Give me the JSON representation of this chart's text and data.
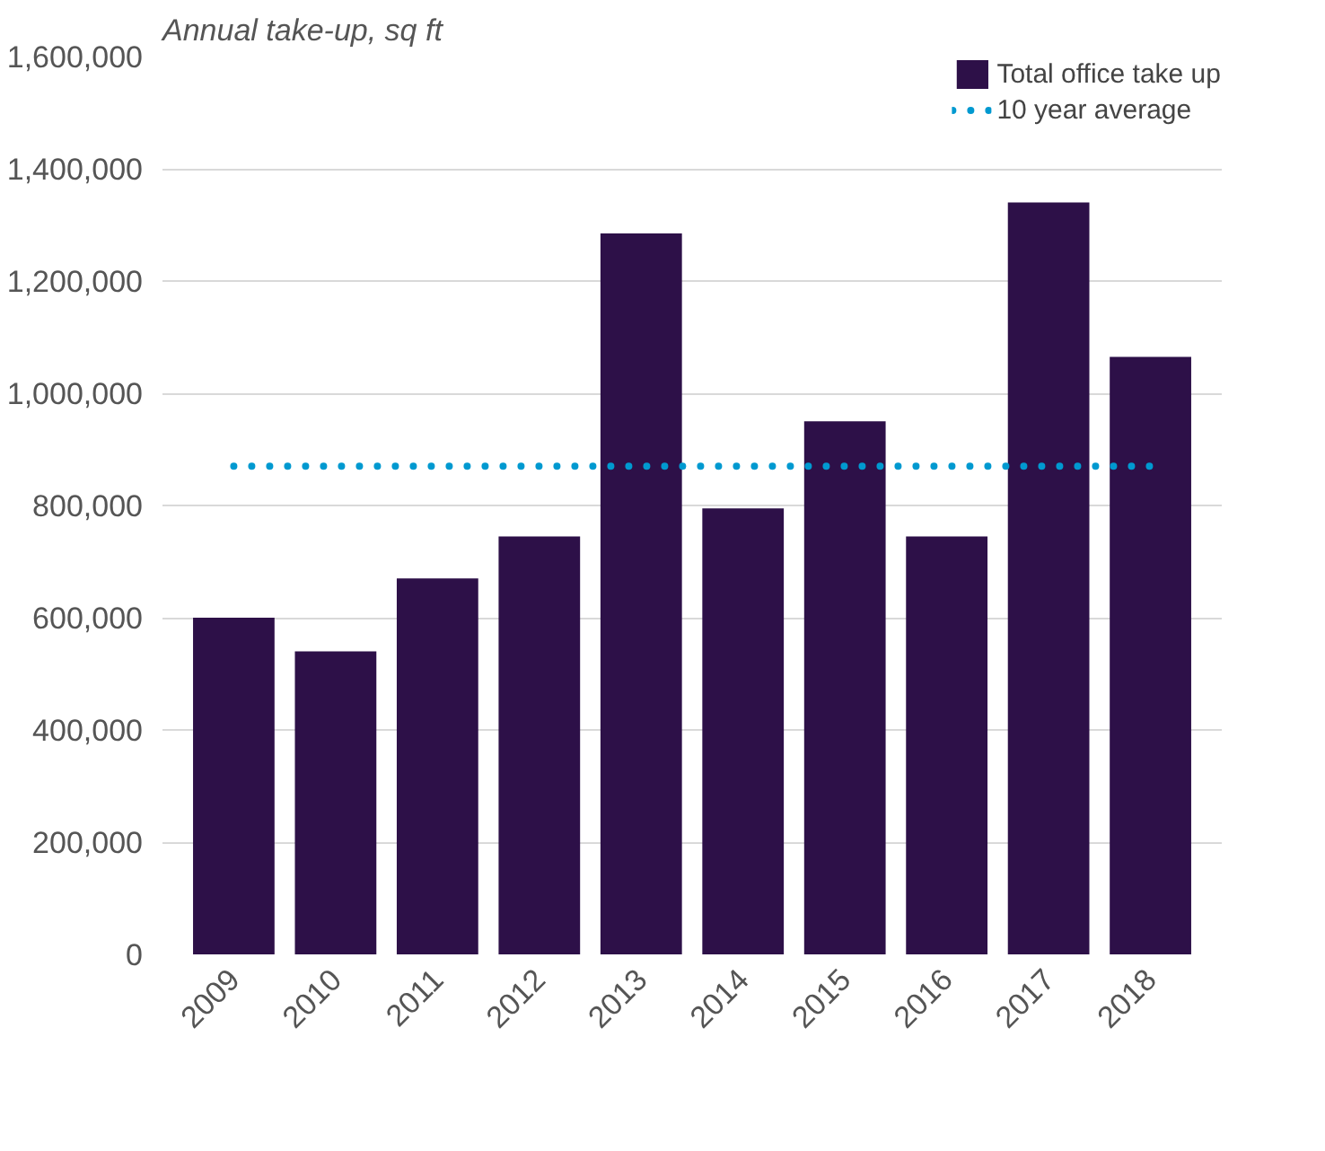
{
  "chart_data": {
    "type": "bar",
    "ylabel": "Annual take-up, sq ft",
    "categories": [
      "2009",
      "2010",
      "2011",
      "2012",
      "2013",
      "2014",
      "2015",
      "2016",
      "2017",
      "2018"
    ],
    "series": [
      {
        "name": "Total office take up",
        "color": "#2d1048",
        "values": [
          600000,
          540000,
          670000,
          745000,
          1285000,
          795000,
          950000,
          745000,
          1340000,
          1065000
        ]
      },
      {
        "name": "10 year average",
        "type": "line",
        "line_style": "dotted",
        "color": "#0099d0",
        "values": [
          870000,
          870000,
          870000,
          870000,
          870000,
          870000,
          870000,
          870000,
          870000,
          870000
        ]
      }
    ],
    "ylim": [
      0,
      1600000
    ],
    "yticks": [
      {
        "value": 0,
        "label": "0"
      },
      {
        "value": 200000,
        "label": "200,000"
      },
      {
        "value": 400000,
        "label": "400,000"
      },
      {
        "value": 600000,
        "label": "600,000"
      },
      {
        "value": 800000,
        "label": "800,000"
      },
      {
        "value": 1000000,
        "label": "1,000,000"
      },
      {
        "value": 1200000,
        "label": "1,200,000"
      },
      {
        "value": 1400000,
        "label": "1,400,000"
      },
      {
        "value": 1600000,
        "label": "1,600,000"
      }
    ],
    "grid": "y",
    "legend": "top right"
  }
}
